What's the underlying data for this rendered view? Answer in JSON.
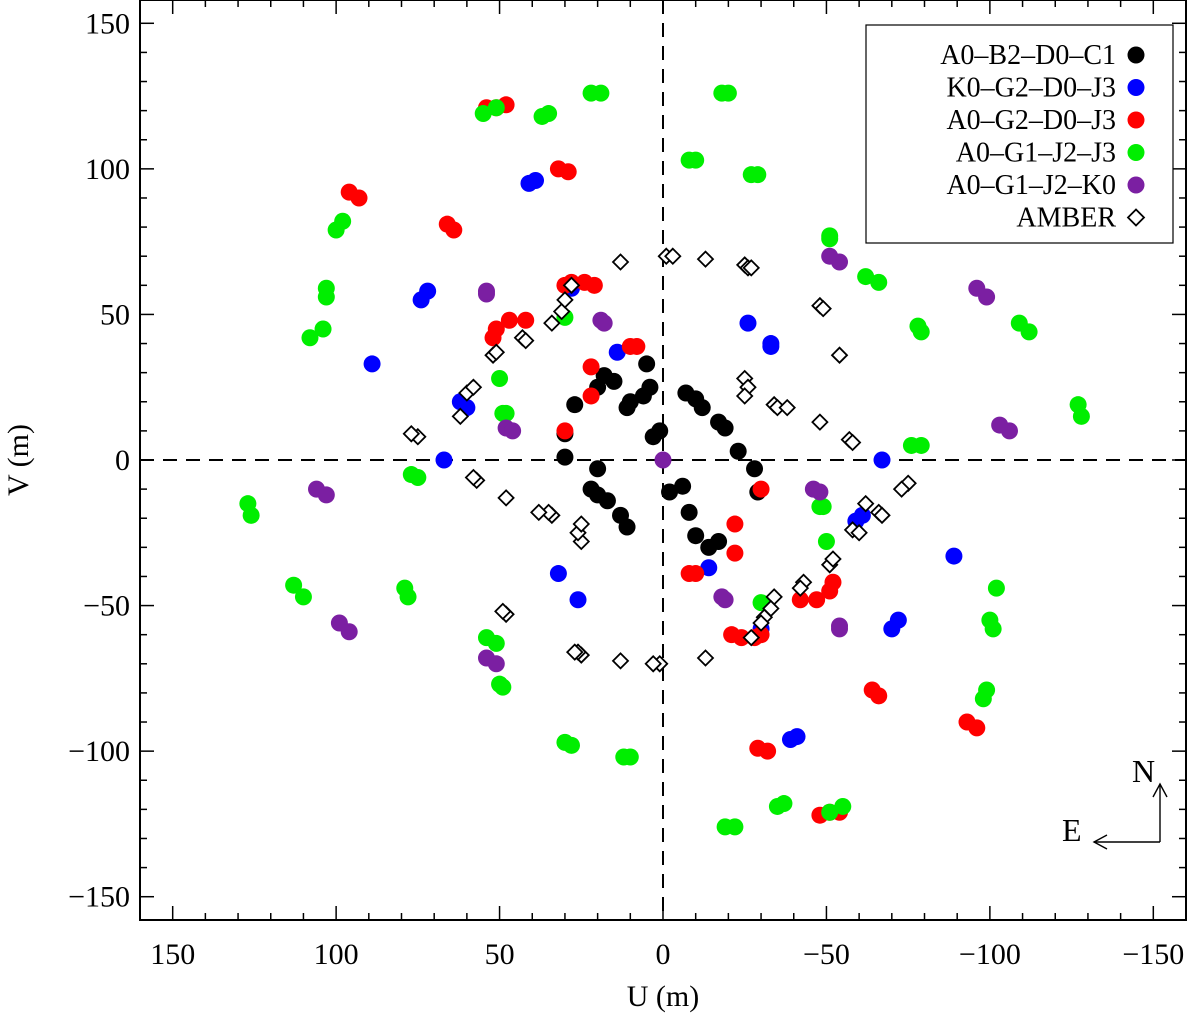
{
  "chart_data": {
    "type": "scatter",
    "title": "",
    "xlabel": "U (m)",
    "ylabel": "V (m)",
    "xlim": [
      160,
      -160
    ],
    "ylim": [
      -158,
      158
    ],
    "xticks": [
      150,
      100,
      50,
      0,
      -50,
      -100,
      -150
    ],
    "yticks": [
      -150,
      -100,
      -50,
      0,
      50,
      100,
      150
    ],
    "xtick_labels": [
      "150",
      "100",
      "50",
      "0",
      "−50",
      "−100",
      "−150"
    ],
    "ytick_labels": [
      "−150",
      "−100",
      "−50",
      "0",
      "50",
      "100",
      "150"
    ],
    "reference_lines": {
      "u": 0,
      "v": 0,
      "style": "dashed"
    },
    "legend_position": "top-right",
    "compass": {
      "north": "N",
      "east": "E"
    },
    "series": [
      {
        "name": "A0–B2–D0–C1",
        "marker": "filled-circle",
        "color": "#000000",
        "points": [
          [
            20,
            25
          ],
          [
            18,
            29
          ],
          [
            15,
            27
          ],
          [
            11,
            18
          ],
          [
            10,
            20
          ],
          [
            6,
            22
          ],
          [
            5,
            33
          ],
          [
            4,
            25
          ],
          [
            3,
            8
          ],
          [
            1,
            10
          ],
          [
            -7,
            23
          ],
          [
            -10,
            21
          ],
          [
            -12,
            18
          ],
          [
            -17,
            13
          ],
          [
            -19,
            11
          ],
          [
            -23,
            3
          ],
          [
            -28,
            -3
          ],
          [
            -29,
            -11
          ],
          [
            20,
            -3
          ],
          [
            22,
            -10
          ],
          [
            20,
            -12
          ],
          [
            17,
            -14
          ],
          [
            13,
            -19
          ],
          [
            11,
            -23
          ],
          [
            -2,
            -11
          ],
          [
            -6,
            -9
          ],
          [
            -8,
            -18
          ],
          [
            -10,
            -26
          ],
          [
            -14,
            -30
          ],
          [
            -17,
            -28
          ],
          [
            30,
            1
          ],
          [
            30,
            9
          ],
          [
            27,
            19
          ]
        ]
      },
      {
        "name": "K0–G2–D0–J3",
        "marker": "filled-circle",
        "color": "#0000ff",
        "points": [
          [
            89,
            33
          ],
          [
            72,
            58
          ],
          [
            74,
            55
          ],
          [
            62,
            20
          ],
          [
            60,
            18
          ],
          [
            67,
            0
          ],
          [
            41,
            95
          ],
          [
            39,
            96
          ],
          [
            28,
            59
          ],
          [
            14,
            37
          ],
          [
            32,
            -39
          ],
          [
            26,
            -48
          ],
          [
            -26,
            47
          ],
          [
            -33,
            39
          ],
          [
            -33,
            40
          ],
          [
            -67,
            0
          ],
          [
            -61,
            -19
          ],
          [
            -59,
            -21
          ],
          [
            -89,
            -33
          ],
          [
            -72,
            -55
          ],
          [
            -70,
            -58
          ],
          [
            -41,
            -95
          ],
          [
            -39,
            -96
          ],
          [
            -30,
            -58
          ],
          [
            -14,
            -37
          ]
        ]
      },
      {
        "name": "A0–G2–D0–J3",
        "marker": "filled-circle",
        "color": "#ff0000",
        "points": [
          [
            54,
            121
          ],
          [
            51,
            121
          ],
          [
            48,
            122
          ],
          [
            96,
            92
          ],
          [
            93,
            90
          ],
          [
            66,
            81
          ],
          [
            64,
            79
          ],
          [
            52,
            42
          ],
          [
            51,
            45
          ],
          [
            47,
            48
          ],
          [
            42,
            48
          ],
          [
            32,
            100
          ],
          [
            29,
            99
          ],
          [
            30,
            60
          ],
          [
            28,
            61
          ],
          [
            24,
            61
          ],
          [
            21,
            60
          ],
          [
            30,
            10
          ],
          [
            22,
            32
          ],
          [
            22,
            22
          ],
          [
            10,
            39
          ],
          [
            8,
            39
          ],
          [
            -54,
            -121
          ],
          [
            -51,
            -121
          ],
          [
            -48,
            -122
          ],
          [
            -96,
            -92
          ],
          [
            -93,
            -90
          ],
          [
            -66,
            -81
          ],
          [
            -64,
            -79
          ],
          [
            -52,
            -42
          ],
          [
            -51,
            -45
          ],
          [
            -47,
            -48
          ],
          [
            -42,
            -48
          ],
          [
            -32,
            -100
          ],
          [
            -29,
            -99
          ],
          [
            -30,
            -60
          ],
          [
            -28,
            -61
          ],
          [
            -24,
            -61
          ],
          [
            -21,
            -60
          ],
          [
            -30,
            -10
          ],
          [
            -22,
            -32
          ],
          [
            -22,
            -22
          ],
          [
            -10,
            -39
          ],
          [
            -8,
            -39
          ]
        ]
      },
      {
        "name": "A0–G1–J2–J3",
        "marker": "filled-circle",
        "color": "#00ee00",
        "points": [
          [
            55,
            119
          ],
          [
            51,
            121
          ],
          [
            22,
            126
          ],
          [
            19,
            126
          ],
          [
            37,
            118
          ],
          [
            35,
            119
          ],
          [
            98,
            82
          ],
          [
            100,
            79
          ],
          [
            103,
            59
          ],
          [
            103,
            56
          ],
          [
            104,
            45
          ],
          [
            108,
            42
          ],
          [
            127,
            -15
          ],
          [
            126,
            -19
          ],
          [
            113,
            -43
          ],
          [
            110,
            -47
          ],
          [
            79,
            -44
          ],
          [
            78,
            -47
          ],
          [
            77,
            -5
          ],
          [
            75,
            -6
          ],
          [
            54,
            -61
          ],
          [
            51,
            -63
          ],
          [
            50,
            -77
          ],
          [
            49,
            -78
          ],
          [
            30,
            -97
          ],
          [
            28,
            -98
          ],
          [
            12,
            -102
          ],
          [
            10,
            -102
          ],
          [
            50,
            28
          ],
          [
            49,
            16
          ],
          [
            48,
            16
          ],
          [
            30,
            49
          ],
          [
            -18,
            126
          ],
          [
            -20,
            126
          ],
          [
            -8,
            103
          ],
          [
            -10,
            103
          ],
          [
            -27,
            98
          ],
          [
            -29,
            98
          ],
          [
            -51,
            77
          ],
          [
            -51,
            76
          ],
          [
            -62,
            63
          ],
          [
            -66,
            61
          ],
          [
            -78,
            46
          ],
          [
            -79,
            44
          ],
          [
            -109,
            47
          ],
          [
            -112,
            44
          ],
          [
            -127,
            19
          ],
          [
            -128,
            15
          ],
          [
            -79,
            5
          ],
          [
            -76,
            5
          ],
          [
            -102,
            -44
          ],
          [
            -100,
            -55
          ],
          [
            -101,
            -58
          ],
          [
            -98,
            -82
          ],
          [
            -99,
            -79
          ],
          [
            -55,
            -119
          ],
          [
            -51,
            -121
          ],
          [
            -22,
            -126
          ],
          [
            -19,
            -126
          ],
          [
            -37,
            -118
          ],
          [
            -35,
            -119
          ],
          [
            -50,
            -28
          ],
          [
            -49,
            -16
          ],
          [
            -48,
            -16
          ],
          [
            -30,
            -49
          ]
        ]
      },
      {
        "name": "A0–G1–J2–K0",
        "marker": "filled-circle",
        "color": "#7b1fa2",
        "points": [
          [
            106,
            -10
          ],
          [
            103,
            -12
          ],
          [
            99,
            -56
          ],
          [
            96,
            -59
          ],
          [
            54,
            -68
          ],
          [
            51,
            -70
          ],
          [
            54,
            57
          ],
          [
            54,
            58
          ],
          [
            48,
            11
          ],
          [
            46,
            10
          ],
          [
            19,
            48
          ],
          [
            18,
            47
          ],
          [
            0,
            0
          ],
          [
            -106,
            10
          ],
          [
            -103,
            12
          ],
          [
            -99,
            56
          ],
          [
            -96,
            59
          ],
          [
            -54,
            68
          ],
          [
            -51,
            70
          ],
          [
            -54,
            -57
          ],
          [
            -54,
            -58
          ],
          [
            -48,
            -11
          ],
          [
            -46,
            -10
          ],
          [
            -19,
            -48
          ],
          [
            -18,
            -47
          ]
        ]
      },
      {
        "name": "AMBER",
        "marker": "open-diamond",
        "color": "#000000",
        "points": [
          [
            -1,
            70
          ],
          [
            -3,
            70
          ],
          [
            -13,
            69
          ],
          [
            -25,
            67
          ],
          [
            -26,
            66
          ],
          [
            -27,
            66
          ],
          [
            -48,
            53
          ],
          [
            -49,
            52
          ],
          [
            -54,
            36
          ],
          [
            -25,
            28
          ],
          [
            -26,
            25
          ],
          [
            -25,
            22
          ],
          [
            -34,
            19
          ],
          [
            -35,
            18
          ],
          [
            -38,
            18
          ],
          [
            -48,
            13
          ],
          [
            -57,
            7
          ],
          [
            -58,
            6
          ],
          [
            -75,
            -8
          ],
          [
            -73,
            -10
          ],
          [
            -62,
            -15
          ],
          [
            -66,
            -18
          ],
          [
            -67,
            -19
          ],
          [
            -58,
            -24
          ],
          [
            -60,
            -25
          ],
          [
            -51,
            -36
          ],
          [
            -52,
            -34
          ],
          [
            -43,
            -42
          ],
          [
            -42,
            -44
          ],
          [
            -34,
            -47
          ],
          [
            -33,
            -51
          ],
          [
            -31,
            -54
          ],
          [
            -30,
            -56
          ],
          [
            -27,
            -61
          ],
          [
            -13,
            -68
          ],
          [
            1,
            -70
          ],
          [
            3,
            -70
          ],
          [
            13,
            -69
          ],
          [
            25,
            -67
          ],
          [
            26,
            -66
          ],
          [
            27,
            -66
          ],
          [
            48,
            -53
          ],
          [
            49,
            -52
          ],
          [
            25,
            -28
          ],
          [
            26,
            -25
          ],
          [
            25,
            -22
          ],
          [
            34,
            -19
          ],
          [
            35,
            -18
          ],
          [
            38,
            -18
          ],
          [
            48,
            -13
          ],
          [
            57,
            -7
          ],
          [
            58,
            -6
          ],
          [
            75,
            8
          ],
          [
            77,
            9
          ],
          [
            62,
            15
          ],
          [
            60,
            23
          ],
          [
            58,
            25
          ],
          [
            52,
            36
          ],
          [
            51,
            37
          ],
          [
            43,
            42
          ],
          [
            42,
            41
          ],
          [
            34,
            47
          ],
          [
            31,
            51
          ],
          [
            30,
            55
          ],
          [
            28,
            60
          ],
          [
            13,
            68
          ]
        ]
      }
    ]
  }
}
